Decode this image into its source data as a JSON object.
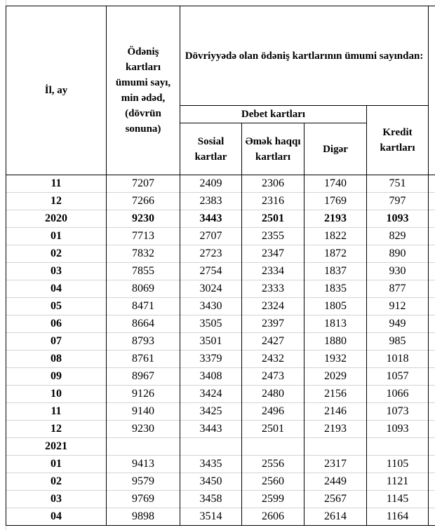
{
  "header": {
    "year_month": "İl, ay",
    "total": "Ödəniş kartları ümumi sayı, min ədəd, (dövrün sonuna)",
    "group": "Dövriyyədə olan ödəniş kartlarının ümumi sayından:",
    "debit": "Debet kartları",
    "social": "Sosial kartlar",
    "salary": "Əmək haqqı kartları",
    "other": "Digər",
    "credit": "Kredit kartları"
  },
  "table": {
    "rows": [
      [
        "11",
        7207,
        2409,
        2306,
        1740,
        751
      ],
      [
        "12",
        7266,
        2383,
        2316,
        1769,
        797
      ],
      [
        "2020",
        9230,
        3443,
        2501,
        2193,
        1093
      ],
      [
        "01",
        7713,
        2707,
        2355,
        1822,
        829
      ],
      [
        "02",
        7832,
        2723,
        2347,
        1872,
        890
      ],
      [
        "03",
        7855,
        2754,
        2334,
        1837,
        930
      ],
      [
        "04",
        8069,
        3024,
        2333,
        1835,
        877
      ],
      [
        "05",
        8471,
        3430,
        2324,
        1805,
        912
      ],
      [
        "06",
        8664,
        3505,
        2397,
        1813,
        949
      ],
      [
        "07",
        8793,
        3501,
        2427,
        1880,
        985
      ],
      [
        "08",
        8761,
        3379,
        2432,
        1932,
        1018
      ],
      [
        "09",
        8967,
        3408,
        2473,
        2029,
        1057
      ],
      [
        "10",
        9126,
        3424,
        2480,
        2156,
        1066
      ],
      [
        "11",
        9140,
        3425,
        2496,
        2146,
        1073
      ],
      [
        "12",
        9230,
        3443,
        2501,
        2193,
        1093
      ],
      [
        "2021"
      ],
      [
        "01",
        9413,
        3435,
        2556,
        2317,
        1105
      ],
      [
        "02",
        9579,
        3450,
        2560,
        2449,
        1121
      ],
      [
        "03",
        9769,
        3458,
        2599,
        2567,
        1145
      ],
      [
        "04",
        9898,
        3514,
        2606,
        2614,
        1164
      ]
    ],
    "bold_rows": [
      2
    ]
  }
}
